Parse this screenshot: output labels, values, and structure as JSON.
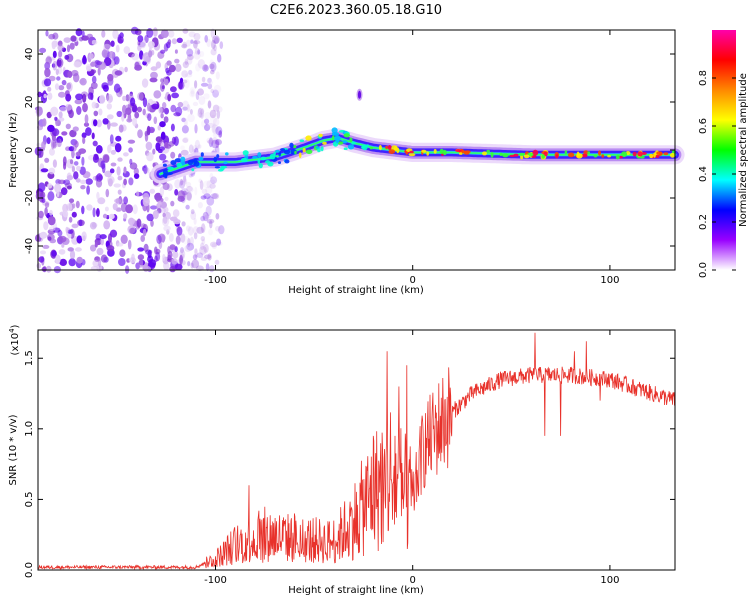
{
  "title": "C2E6.2023.360.05.18.G10",
  "chart_data": [
    {
      "type": "heatmap",
      "xlabel": "Height of straight line (km)",
      "ylabel": "Frequency (Hz)",
      "xlim": [
        -190,
        133
      ],
      "ylim": [
        -50,
        50
      ],
      "xticks": [
        -100,
        0,
        100
      ],
      "yticks": [
        -40,
        -20,
        0,
        20,
        40
      ],
      "noise_region_x": [
        -190,
        -105
      ],
      "line_x_start": -128,
      "ridge": [
        {
          "x": -128,
          "y": -10
        },
        {
          "x": -110,
          "y": -5
        },
        {
          "x": -90,
          "y": -5
        },
        {
          "x": -70,
          "y": -3
        },
        {
          "x": -55,
          "y": 1
        },
        {
          "x": -45,
          "y": 4
        },
        {
          "x": -38,
          "y": 5
        },
        {
          "x": -30,
          "y": 3
        },
        {
          "x": -20,
          "y": 1
        },
        {
          "x": -10,
          "y": 0
        },
        {
          "x": 0,
          "y": -1
        },
        {
          "x": 20,
          "y": -1
        },
        {
          "x": 60,
          "y": -2
        },
        {
          "x": 100,
          "y": -2
        },
        {
          "x": 133,
          "y": -2
        }
      ],
      "blob": {
        "x": -27,
        "y": 23
      },
      "colorbar": {
        "label": "Normalized spectral amplitude",
        "ticks": [
          "0.0",
          "0.2",
          "0.4",
          "0.6",
          "0.8"
        ],
        "range": [
          0,
          1
        ],
        "colors": [
          "#ffffff",
          "#9900ff",
          "#0000ff",
          "#00ffff",
          "#00ff00",
          "#ffff00",
          "#ff8800",
          "#ff0000",
          "#ff00aa"
        ]
      }
    },
    {
      "type": "line",
      "xlabel": "Height of straight line (km)",
      "ylabel": "SNR (10 * v/v)",
      "y_multiplier": "(x10",
      "y_multiplier_exp": "4",
      "y_multiplier_close": ")",
      "xlim": [
        -190,
        133
      ],
      "ylim": [
        0,
        1.7
      ],
      "xticks": [
        -100,
        0,
        100
      ],
      "yticks": [
        "0.0",
        "0.5",
        "1.0",
        "1.5"
      ],
      "color": "#e8312a",
      "envelope": [
        {
          "x": -190,
          "y": 0.02
        },
        {
          "x": -110,
          "y": 0.02
        },
        {
          "x": -100,
          "y": 0.08
        },
        {
          "x": -90,
          "y": 0.18
        },
        {
          "x": -75,
          "y": 0.25
        },
        {
          "x": -60,
          "y": 0.22
        },
        {
          "x": -40,
          "y": 0.2
        },
        {
          "x": -30,
          "y": 0.35
        },
        {
          "x": -20,
          "y": 0.55
        },
        {
          "x": -10,
          "y": 0.7
        },
        {
          "x": -5,
          "y": 0.55
        },
        {
          "x": 0,
          "y": 0.5
        },
        {
          "x": 5,
          "y": 0.85
        },
        {
          "x": 15,
          "y": 1.05
        },
        {
          "x": 30,
          "y": 1.25
        },
        {
          "x": 45,
          "y": 1.35
        },
        {
          "x": 60,
          "y": 1.38
        },
        {
          "x": 80,
          "y": 1.38
        },
        {
          "x": 100,
          "y": 1.35
        },
        {
          "x": 115,
          "y": 1.28
        },
        {
          "x": 133,
          "y": 1.2
        }
      ],
      "spikes": [
        {
          "x": -83,
          "y": 0.6
        },
        {
          "x": -78,
          "y": 0.42
        },
        {
          "x": -60,
          "y": 0.4
        },
        {
          "x": -40,
          "y": 0.35
        },
        {
          "x": -20,
          "y": 0.95
        },
        {
          "x": -13,
          "y": 1.55
        },
        {
          "x": -7,
          "y": 1.3
        },
        {
          "x": -3,
          "y": 1.45
        },
        {
          "x": 30,
          "y": 1.3
        },
        {
          "x": 62,
          "y": 1.68
        },
        {
          "x": 67,
          "y": 0.95
        },
        {
          "x": 75,
          "y": 0.95
        },
        {
          "x": 82,
          "y": 1.55
        },
        {
          "x": 88,
          "y": 1.62
        },
        {
          "x": 95,
          "y": 1.2
        }
      ]
    }
  ]
}
